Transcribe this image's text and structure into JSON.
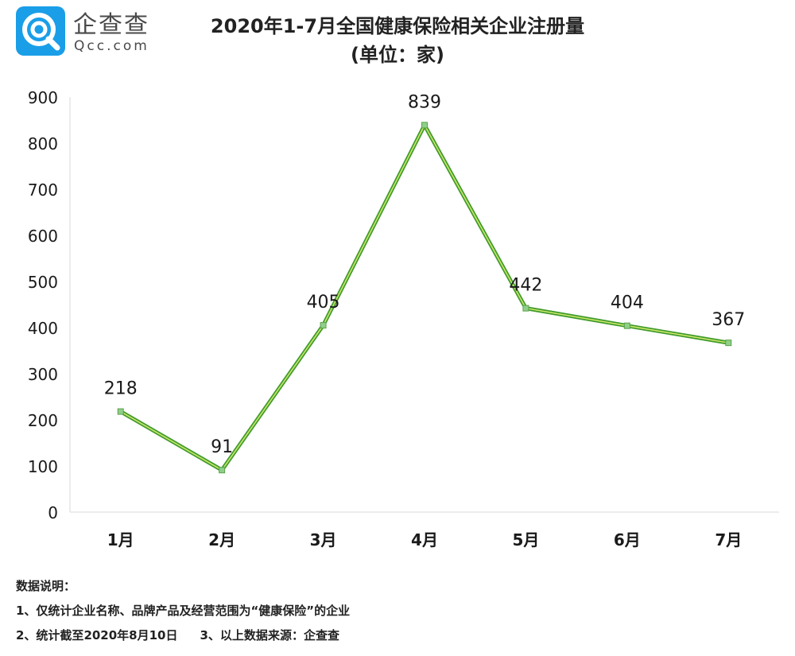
{
  "brand": {
    "name_cn": "企查查",
    "name_en": "Qcc.com",
    "color": "#1a9ee8"
  },
  "chart_data": {
    "type": "line",
    "title": "2020年1-7月全国健康保险相关企业注册量",
    "subtitle": "(单位：家)",
    "categories": [
      "1月",
      "2月",
      "3月",
      "4月",
      "5月",
      "6月",
      "7月"
    ],
    "values": [
      218,
      91,
      405,
      839,
      442,
      404,
      367
    ],
    "data_labels": [
      "218",
      "91",
      "405",
      "839",
      "442",
      "404",
      "367"
    ],
    "ylim": [
      0,
      900
    ],
    "y_ticks": [
      0,
      100,
      200,
      300,
      400,
      500,
      600,
      700,
      800,
      900
    ],
    "xlabel": "",
    "ylabel": "",
    "grid": false,
    "line_color": "#3f9a2b",
    "line_highlight_color": "#c9e66a"
  },
  "notes": {
    "heading": "数据说明：",
    "item1": "1、仅统计企业名称、品牌产品及经营范围为“健康保险”的企业",
    "item2": "2、统计截至2020年8月10日",
    "item3": "3、以上数据来源：企查查"
  }
}
